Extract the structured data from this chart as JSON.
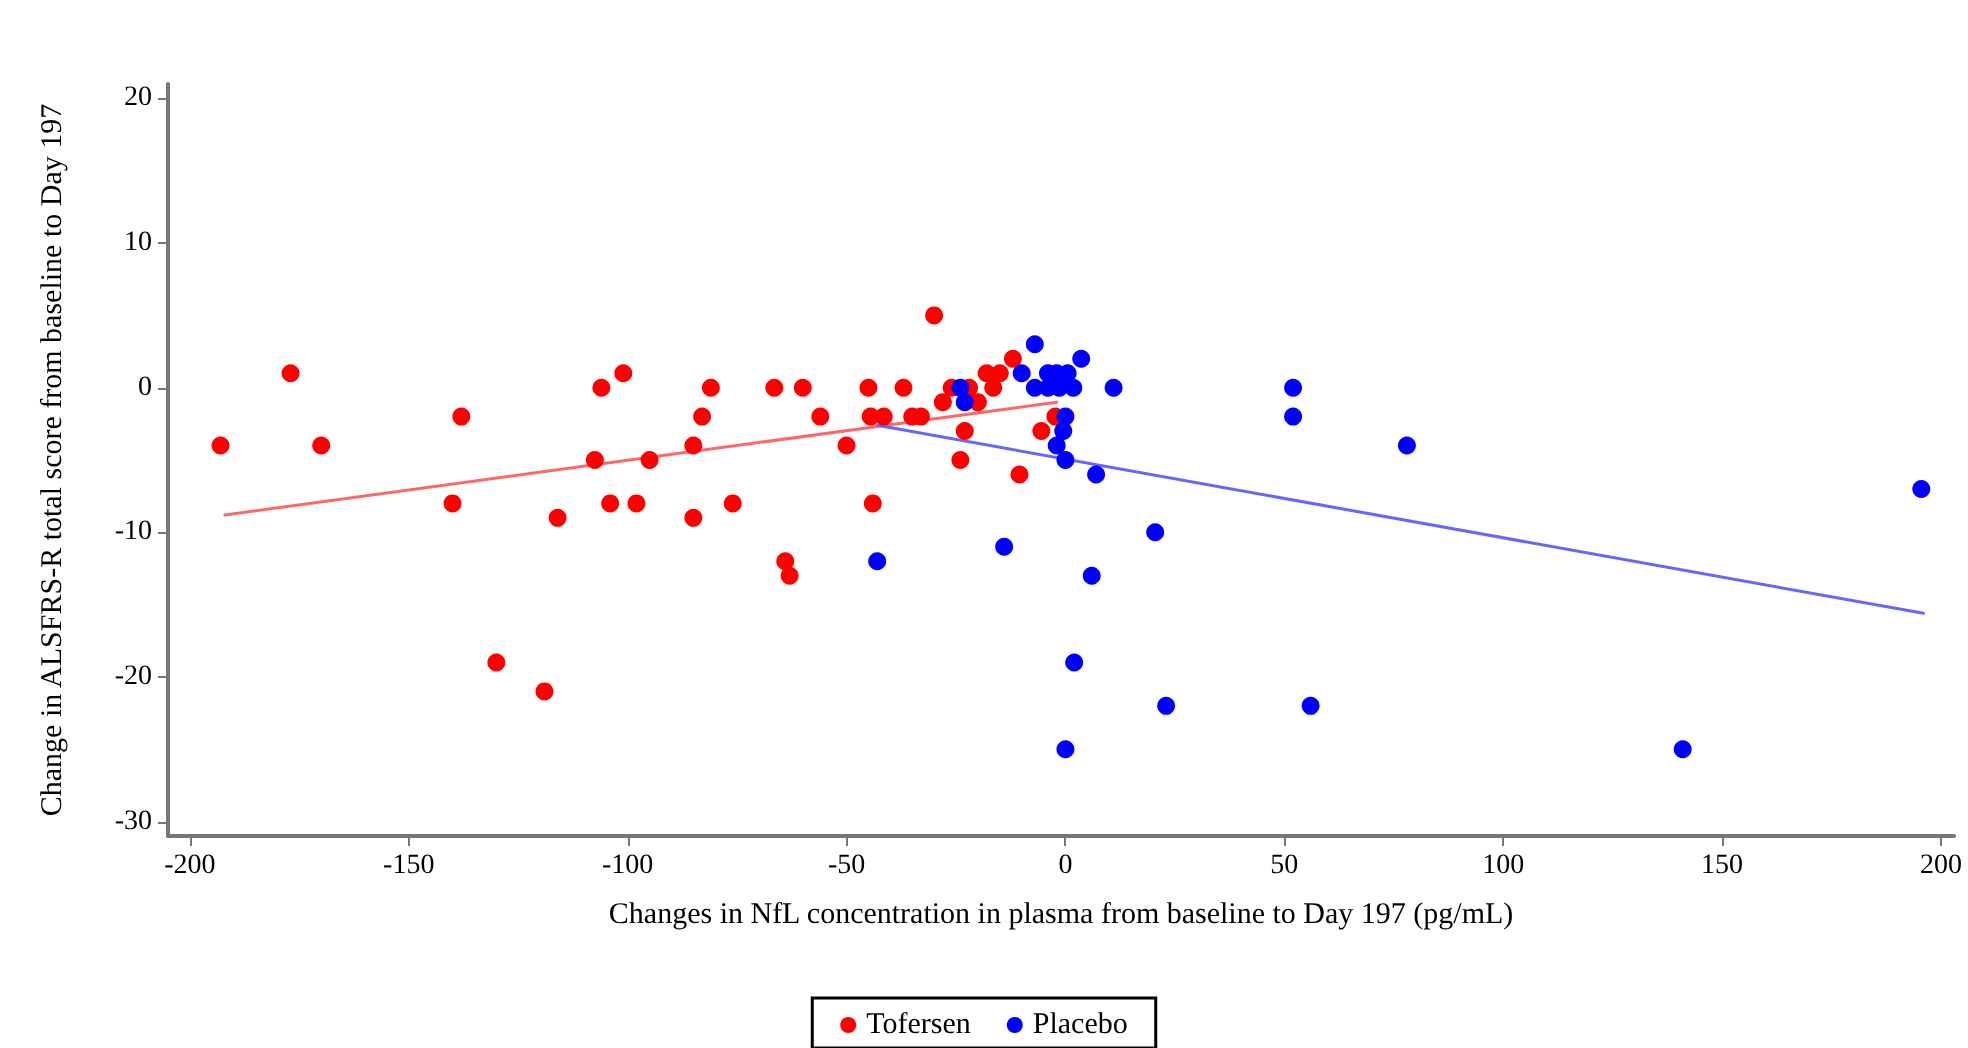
{
  "chart_data": {
    "type": "scatter",
    "xlabel": "Changes in NfL concentration in plasma from baseline to Day 197 (pg/mL)",
    "ylabel": "Change in ALSFRS-R total score from baseline to Day 197",
    "xlim": [
      -205,
      203
    ],
    "xticks": [
      -200,
      -150,
      -100,
      -50,
      0,
      50,
      100,
      150,
      200
    ],
    "ylim": [
      -31,
      21
    ],
    "yticks": [
      -30,
      -20,
      -10,
      0,
      10,
      20
    ],
    "grid": false,
    "legend": "bottom",
    "series": [
      {
        "name": "Tofersen",
        "color": "#ff0000",
        "marker": "circle",
        "x": [
          -193,
          -177,
          -170,
          -140,
          -138,
          -130,
          -119,
          -116,
          -107.5,
          -106,
          -104,
          -101,
          -98,
          -95,
          -85,
          -85,
          -83,
          -81,
          -76,
          -66.5,
          -64,
          -63,
          -60,
          -56,
          -50,
          -45,
          -44,
          -44.5,
          -41.5,
          -37,
          -35,
          -33,
          -30,
          -28,
          -26,
          -24,
          -23,
          -22,
          -20,
          -18,
          -16.5,
          -15,
          -12,
          -10.5,
          -5.5,
          -2.3
        ],
        "values": [
          -4,
          1,
          -4,
          -8,
          -2,
          -19,
          -21,
          -9,
          -5,
          0,
          -8,
          1,
          -8,
          -5,
          -4,
          -9,
          -2,
          0,
          -8,
          0,
          -12,
          -13,
          0,
          -2,
          -4,
          0,
          -8,
          -2,
          -2,
          0,
          -2,
          -2,
          5,
          -1,
          0,
          -5,
          -3,
          0,
          -1,
          1,
          0,
          1,
          2,
          -6,
          -3,
          -2
        ]
      },
      {
        "name": "Placebo",
        "color": "#0000ff",
        "marker": "circle",
        "x": [
          -43,
          -24,
          -23,
          -14,
          -10,
          -7,
          -7,
          -4,
          -4,
          -2,
          -1.4,
          0.5,
          1.8,
          0,
          -0.5,
          -2,
          0,
          3.6,
          11,
          7,
          2,
          6,
          0,
          20.5,
          23,
          52,
          52,
          78,
          195.5,
          141,
          56
        ],
        "values": [
          -12,
          0,
          -1,
          -11,
          1,
          3,
          0,
          1,
          0,
          1,
          0,
          1,
          0,
          -2,
          -3,
          -4,
          -5,
          2,
          0,
          -6,
          -19,
          -13,
          -25,
          -10,
          -22,
          0,
          -2,
          -4,
          -7,
          -25,
          -22
        ]
      },
      {
        "type": "line",
        "color": "#ff6666",
        "marker": "none",
        "x": [
          -192,
          -2
        ],
        "values": [
          -8.8,
          -1
        ]
      },
      {
        "type": "line",
        "color": "#6666ff",
        "marker": "none",
        "x": [
          -43,
          196
        ],
        "values": [
          -2.6,
          -15.6
        ]
      }
    ]
  }
}
